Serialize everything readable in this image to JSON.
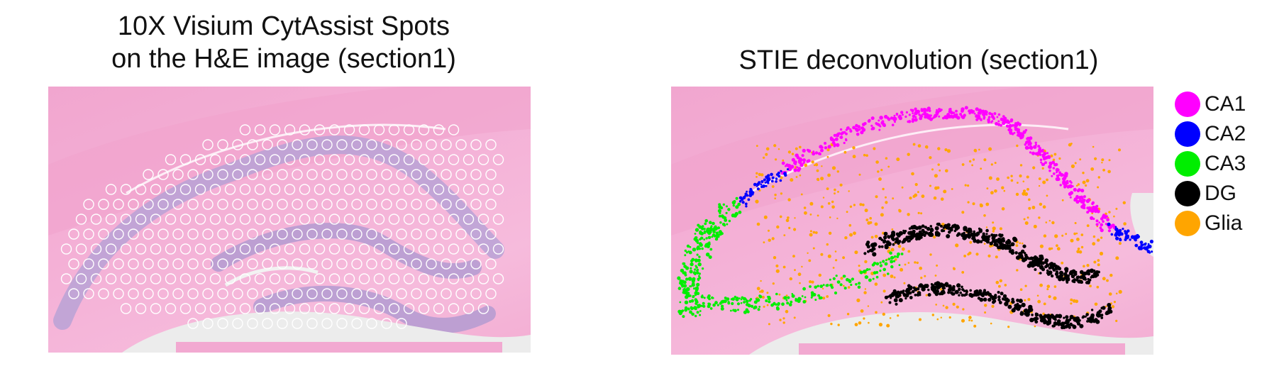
{
  "left_panel": {
    "title_line1": "10X Visium CytAssist Spots",
    "title_line2": "on the H&E image (section1)"
  },
  "right_panel": {
    "title": "STIE deconvolution (section1)"
  },
  "legend": {
    "items": [
      {
        "label": "CA1",
        "color": "#ff00ff"
      },
      {
        "label": "CA2",
        "color": "#0000ff"
      },
      {
        "label": "CA3",
        "color": "#00ee00"
      },
      {
        "label": "DG",
        "color": "#000000"
      },
      {
        "label": "Glia",
        "color": "#ffa500"
      }
    ]
  },
  "tissue_colors": {
    "background": "#f4b0d6",
    "cell_layer": "#b9a2d6",
    "gap": "#ececec",
    "spot_ring": "#ffffff"
  }
}
